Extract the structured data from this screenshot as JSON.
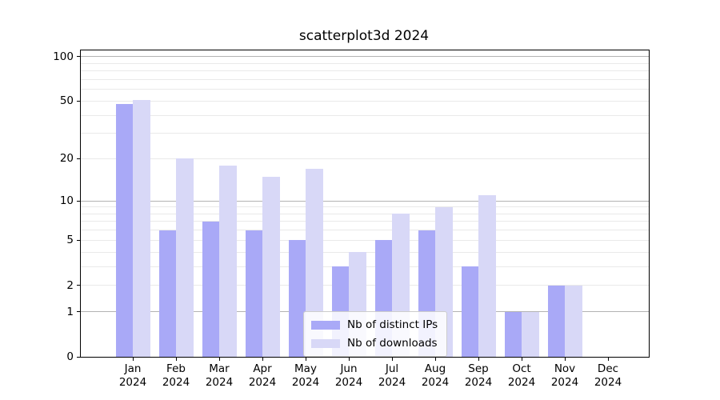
{
  "colors": {
    "background": "#ffffff",
    "text": "#000000",
    "axis": "#000000",
    "grid_major": "#b3b3b3",
    "grid_minor": "#e9e9e9",
    "legend_border": "#cccccc",
    "legend_background": "rgba(255,255,255,0.85)"
  },
  "chart_data": {
    "type": "bar",
    "title": "scatterplot3d 2024",
    "xlabel": "",
    "ylabel": "",
    "y_scale": "log10(1+x)",
    "ylim": [
      0,
      100
    ],
    "grid": "horizontal",
    "legend_position": "bottom-center-inside",
    "categories": [
      {
        "month": "Jan",
        "year": "2024"
      },
      {
        "month": "Feb",
        "year": "2024"
      },
      {
        "month": "Mar",
        "year": "2024"
      },
      {
        "month": "Apr",
        "year": "2024"
      },
      {
        "month": "May",
        "year": "2024"
      },
      {
        "month": "Jun",
        "year": "2024"
      },
      {
        "month": "Jul",
        "year": "2024"
      },
      {
        "month": "Aug",
        "year": "2024"
      },
      {
        "month": "Sep",
        "year": "2024"
      },
      {
        "month": "Oct",
        "year": "2024"
      },
      {
        "month": "Nov",
        "year": "2024"
      },
      {
        "month": "Dec",
        "year": "2024"
      }
    ],
    "series": [
      {
        "name": "Nb of distinct IPs",
        "color": "#a9a9f7",
        "values": [
          48,
          6,
          7,
          6,
          5,
          3,
          5,
          6,
          3,
          1,
          2,
          0
        ]
      },
      {
        "name": "Nb of downloads",
        "color": "#d8d8f7",
        "values": [
          51,
          20,
          18,
          15,
          17,
          4,
          8,
          9,
          11,
          1,
          2,
          0
        ]
      }
    ],
    "y_ticks": [
      {
        "value": 0,
        "label": "0"
      },
      {
        "value": 1,
        "label": "1"
      },
      {
        "value": 2,
        "label": "2"
      },
      {
        "value": 5,
        "label": "5"
      },
      {
        "value": 10,
        "label": "10"
      },
      {
        "value": 20,
        "label": "20"
      },
      {
        "value": 50,
        "label": "50"
      },
      {
        "value": 100,
        "label": "100"
      }
    ],
    "gridlines_major": [
      1,
      10,
      100
    ],
    "gridlines_minor": [
      2,
      3,
      4,
      5,
      6,
      7,
      8,
      9,
      20,
      30,
      40,
      50,
      60,
      70,
      80,
      90
    ]
  }
}
